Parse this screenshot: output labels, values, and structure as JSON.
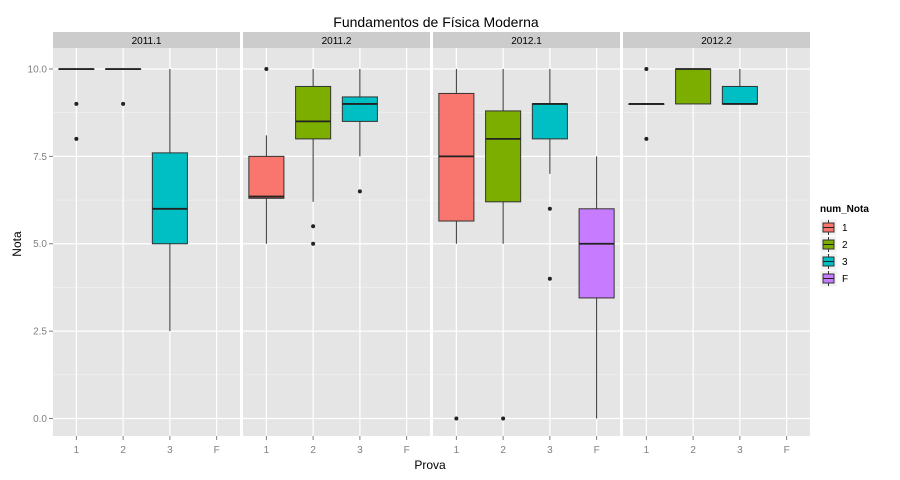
{
  "chart_data": {
    "type": "boxplot",
    "title": "Fundamentos de Física Moderna",
    "xlabel": "Prova",
    "ylabel": "Nota",
    "ylim": [
      -0.5,
      10.6
    ],
    "yticks": [
      "0.0",
      "2.5",
      "5.0",
      "7.5",
      "10.0"
    ],
    "ytick_values": [
      0,
      2.5,
      5,
      7.5,
      10
    ],
    "categories": [
      "1",
      "2",
      "3",
      "F"
    ],
    "grid": true,
    "legend": {
      "title": "num_Nota",
      "placement": "right",
      "entries": [
        {
          "label": "1",
          "color": "#F8766D"
        },
        {
          "label": "2",
          "color": "#7CAE00"
        },
        {
          "label": "3",
          "color": "#00BFC4"
        },
        {
          "label": "F",
          "color": "#C77CFF"
        }
      ]
    },
    "colors": {
      "1": "#F8766D",
      "2": "#7CAE00",
      "3": "#00BFC4",
      "F": "#C77CFF"
    },
    "panels": [
      {
        "label": "2011.1",
        "boxes": [
          {
            "cat": "1",
            "min": 10,
            "q1": 10,
            "median": 10,
            "q3": 10,
            "max": 10,
            "outliers": [
              9,
              8
            ]
          },
          {
            "cat": "2",
            "min": 10,
            "q1": 10,
            "median": 10,
            "q3": 10,
            "max": 10,
            "outliers": [
              9
            ]
          },
          {
            "cat": "3",
            "min": 2.5,
            "q1": 5,
            "median": 6,
            "q3": 7.6,
            "max": 10,
            "outliers": []
          }
        ]
      },
      {
        "label": "2011.2",
        "boxes": [
          {
            "cat": "1",
            "min": 5,
            "q1": 6.3,
            "median": 6.35,
            "q3": 7.5,
            "max": 8.1,
            "outliers": [
              10
            ]
          },
          {
            "cat": "2",
            "min": 6.2,
            "q1": 8,
            "median": 8.5,
            "q3": 9.5,
            "max": 10,
            "outliers": [
              5.5,
              5
            ]
          },
          {
            "cat": "3",
            "min": 7.5,
            "q1": 8.5,
            "median": 9,
            "q3": 9.2,
            "max": 10,
            "outliers": [
              6.5
            ]
          }
        ]
      },
      {
        "label": "2012.1",
        "boxes": [
          {
            "cat": "1",
            "min": 5,
            "q1": 5.65,
            "median": 7.5,
            "q3": 9.3,
            "max": 10,
            "outliers": [
              0
            ]
          },
          {
            "cat": "2",
            "min": 5,
            "q1": 6.2,
            "median": 8,
            "q3": 8.8,
            "max": 10,
            "outliers": [
              0
            ]
          },
          {
            "cat": "3",
            "min": 7,
            "q1": 8,
            "median": 9,
            "q3": 9,
            "max": 10,
            "outliers": [
              6,
              4
            ]
          },
          {
            "cat": "F",
            "min": 0,
            "q1": 3.45,
            "median": 5,
            "q3": 6,
            "max": 7.5,
            "outliers": []
          }
        ]
      },
      {
        "label": "2012.2",
        "boxes": [
          {
            "cat": "1",
            "min": 9,
            "q1": 9,
            "median": 9,
            "q3": 9,
            "max": 9,
            "outliers": [
              10,
              8
            ]
          },
          {
            "cat": "2",
            "min": 9,
            "q1": 9,
            "median": 10,
            "q3": 10,
            "max": 10,
            "outliers": []
          },
          {
            "cat": "3",
            "min": 9,
            "q1": 9,
            "median": 9,
            "q3": 9.5,
            "max": 10,
            "outliers": []
          }
        ]
      }
    ]
  }
}
